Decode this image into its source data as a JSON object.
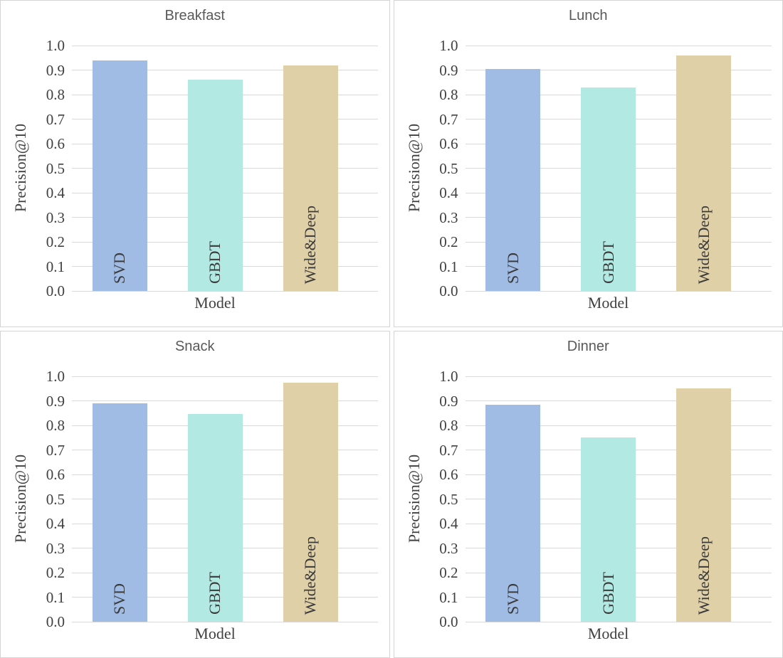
{
  "style": {
    "title_color": "#595959",
    "axis_text_color": "#404040",
    "bar_label_color": "#3a3a3a",
    "grid_color": "#d9d9d9",
    "panel_border_color": "#d4d4d4",
    "background": "#ffffff"
  },
  "chart_data": [
    {
      "type": "bar",
      "title": "Breakfast",
      "xlabel": "Model",
      "ylabel": "Precision@10",
      "categories": [
        "SVD",
        "GBDT",
        "Wide&Deep"
      ],
      "values": [
        0.94,
        0.86,
        0.92
      ],
      "bar_colors": [
        "#a0bce5",
        "#b2e9e3",
        "#e0d0a8"
      ],
      "ylim": [
        0.0,
        1.0
      ],
      "yticks": [
        "0.0",
        "0.1",
        "0.2",
        "0.3",
        "0.4",
        "0.5",
        "0.6",
        "0.7",
        "0.8",
        "0.9",
        "1.0"
      ],
      "grid": true,
      "legend": "none"
    },
    {
      "type": "bar",
      "title": "Lunch",
      "xlabel": "Model",
      "ylabel": "Precision@10",
      "categories": [
        "SVD",
        "GBDT",
        "Wide&Deep"
      ],
      "values": [
        0.905,
        0.83,
        0.96
      ],
      "bar_colors": [
        "#a0bce5",
        "#b2e9e3",
        "#e0d0a8"
      ],
      "ylim": [
        0.0,
        1.0
      ],
      "yticks": [
        "0.0",
        "0.1",
        "0.2",
        "0.3",
        "0.4",
        "0.5",
        "0.6",
        "0.7",
        "0.8",
        "0.9",
        "1.0"
      ],
      "grid": true,
      "legend": "none"
    },
    {
      "type": "bar",
      "title": "Snack",
      "xlabel": "Model",
      "ylabel": "Precision@10",
      "categories": [
        "SVD",
        "GBDT",
        "Wide&Deep"
      ],
      "values": [
        0.89,
        0.845,
        0.975
      ],
      "bar_colors": [
        "#a0bce5",
        "#b2e9e3",
        "#e0d0a8"
      ],
      "ylim": [
        0.0,
        1.0
      ],
      "yticks": [
        "0.0",
        "0.1",
        "0.2",
        "0.3",
        "0.4",
        "0.5",
        "0.6",
        "0.7",
        "0.8",
        "0.9",
        "1.0"
      ],
      "grid": true,
      "legend": "none"
    },
    {
      "type": "bar",
      "title": "Dinner",
      "xlabel": "Model",
      "ylabel": "Precision@10",
      "categories": [
        "SVD",
        "GBDT",
        "Wide&Deep"
      ],
      "values": [
        0.885,
        0.75,
        0.95
      ],
      "bar_colors": [
        "#a0bce5",
        "#b2e9e3",
        "#e0d0a8"
      ],
      "ylim": [
        0.0,
        1.0
      ],
      "yticks": [
        "0.0",
        "0.1",
        "0.2",
        "0.3",
        "0.4",
        "0.5",
        "0.6",
        "0.7",
        "0.8",
        "0.9",
        "1.0"
      ],
      "grid": true,
      "legend": "none"
    }
  ]
}
